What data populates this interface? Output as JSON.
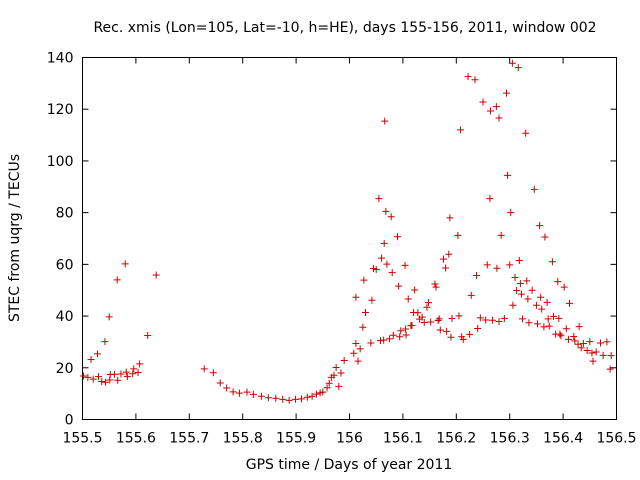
{
  "chart_data": {
    "type": "scatter",
    "title": "Rec. xmis (Lon=105, Lat=-10, h=HE), days 155-156, 2011, window 002",
    "xlabel": "GPS time / Days of year 2011",
    "ylabel": "STEC from uqrg / TECUs",
    "xlim": [
      155.5,
      156.5
    ],
    "ylim": [
      0,
      140
    ],
    "xticks": [
      155.5,
      155.6,
      155.7,
      155.8,
      155.9,
      156,
      156.1,
      156.2,
      156.3,
      156.4,
      156.5
    ],
    "xtick_labels": [
      "155.5",
      "155.6",
      "155.7",
      "155.8",
      "155.9",
      "156",
      "156.1",
      "156.2",
      "156.3",
      "156.4",
      "156.5"
    ],
    "yticks": [
      0,
      20,
      40,
      60,
      80,
      100,
      120,
      140
    ],
    "ytick_labels": [
      "0",
      "20",
      "40",
      "60",
      "80",
      "100",
      "120",
      "140"
    ],
    "grid": false,
    "marker": "+",
    "color": "#cc0000",
    "points": [
      [
        155.502,
        16.8
      ],
      [
        155.51,
        16.3
      ],
      [
        155.516,
        23.2
      ],
      [
        155.52,
        15.6
      ],
      [
        155.528,
        25.4
      ],
      [
        155.53,
        16.6
      ],
      [
        155.536,
        14.7
      ],
      [
        155.542,
        30.1
      ],
      [
        155.543,
        14.4
      ],
      [
        155.55,
        39.7
      ],
      [
        155.551,
        15.3
      ],
      [
        155.552,
        17.4
      ],
      [
        155.56,
        17.5
      ],
      [
        155.565,
        54.0
      ],
      [
        155.566,
        15.2
      ],
      [
        155.572,
        17.6
      ],
      [
        155.58,
        60.2
      ],
      [
        155.582,
        18.3
      ],
      [
        155.584,
        16.6
      ],
      [
        155.594,
        17.7
      ],
      [
        155.596,
        19.6
      ],
      [
        155.604,
        18.2
      ],
      [
        155.607,
        21.5
      ],
      [
        155.622,
        32.5
      ],
      [
        155.638,
        55.9
      ],
      [
        155.728,
        19.6
      ],
      [
        155.745,
        18.1
      ],
      [
        155.758,
        14.1
      ],
      [
        155.77,
        12.2
      ],
      [
        155.782,
        10.7
      ],
      [
        155.794,
        10.2
      ],
      [
        155.808,
        10.6
      ],
      [
        155.82,
        9.7
      ],
      [
        155.835,
        9.0
      ],
      [
        155.848,
        8.4
      ],
      [
        155.862,
        8.2
      ],
      [
        155.875,
        7.8
      ],
      [
        155.887,
        7.4
      ],
      [
        155.899,
        7.8
      ],
      [
        155.91,
        8.0
      ],
      [
        155.921,
        8.6
      ],
      [
        155.93,
        9.0
      ],
      [
        155.938,
        9.8
      ],
      [
        155.945,
        10.3
      ],
      [
        155.95,
        10.6
      ],
      [
        155.958,
        12.3
      ],
      [
        155.962,
        14.0
      ],
      [
        155.966,
        16.3
      ],
      [
        155.971,
        17.1
      ],
      [
        155.975,
        20.1
      ],
      [
        155.98,
        12.8
      ],
      [
        155.984,
        18.0
      ],
      [
        155.99,
        22.8
      ],
      [
        156.008,
        25.6
      ],
      [
        156.012,
        29.4
      ],
      [
        156.012,
        47.3
      ],
      [
        156.016,
        22.6
      ],
      [
        156.02,
        27.3
      ],
      [
        156.025,
        35.7
      ],
      [
        156.027,
        53.9
      ],
      [
        156.03,
        41.4
      ],
      [
        156.04,
        29.6
      ],
      [
        156.042,
        46.1
      ],
      [
        156.045,
        58.4
      ],
      [
        156.05,
        58.0
      ],
      [
        156.055,
        85.4
      ],
      [
        156.058,
        30.5
      ],
      [
        156.06,
        62.4
      ],
      [
        156.064,
        30.7
      ],
      [
        156.065,
        68.1
      ],
      [
        156.066,
        115.4
      ],
      [
        156.068,
        80.5
      ],
      [
        156.07,
        60.1
      ],
      [
        156.075,
        31.2
      ],
      [
        156.078,
        78.4
      ],
      [
        156.08,
        56.8
      ],
      [
        156.082,
        32.6
      ],
      [
        156.09,
        70.7
      ],
      [
        156.092,
        51.6
      ],
      [
        156.094,
        32.0
      ],
      [
        156.096,
        34.3
      ],
      [
        156.104,
        59.6
      ],
      [
        156.105,
        35.0
      ],
      [
        156.106,
        32.7
      ],
      [
        156.11,
        46.6
      ],
      [
        156.115,
        36.3
      ],
      [
        156.117,
        36.4
      ],
      [
        156.12,
        41.4
      ],
      [
        156.122,
        50.1
      ],
      [
        156.128,
        41.3
      ],
      [
        156.131,
        38.8
      ],
      [
        156.136,
        39.6
      ],
      [
        156.14,
        37.5
      ],
      [
        156.145,
        43.4
      ],
      [
        156.148,
        45.2
      ],
      [
        156.152,
        37.7
      ],
      [
        156.16,
        52.4
      ],
      [
        156.162,
        51.2
      ],
      [
        156.166,
        38.3
      ],
      [
        156.168,
        38.9
      ],
      [
        156.17,
        34.6
      ],
      [
        156.176,
        62.0
      ],
      [
        156.18,
        58.6
      ],
      [
        156.182,
        34.1
      ],
      [
        156.186,
        63.9
      ],
      [
        156.19,
        31.8
      ],
      [
        156.188,
        78.0
      ],
      [
        156.192,
        39.1
      ],
      [
        156.203,
        71.2
      ],
      [
        156.205,
        40.1
      ],
      [
        156.208,
        112.0
      ],
      [
        156.21,
        32.0
      ],
      [
        156.213,
        31.0
      ],
      [
        156.222,
        132.6
      ],
      [
        156.225,
        32.9
      ],
      [
        156.228,
        48.0
      ],
      [
        156.235,
        131.4
      ],
      [
        156.238,
        55.7
      ],
      [
        156.24,
        35.2
      ],
      [
        156.245,
        39.3
      ],
      [
        156.25,
        122.8
      ],
      [
        156.255,
        38.5
      ],
      [
        156.258,
        59.8
      ],
      [
        156.263,
        85.4
      ],
      [
        156.264,
        119.3
      ],
      [
        156.268,
        38.4
      ],
      [
        156.275,
        121.0
      ],
      [
        156.276,
        58.5
      ],
      [
        156.28,
        116.6
      ],
      [
        156.28,
        37.9
      ],
      [
        156.284,
        71.2
      ],
      [
        156.29,
        39.1
      ],
      [
        156.294,
        126.2
      ],
      [
        156.296,
        94.4
      ],
      [
        156.3,
        59.8
      ],
      [
        156.302,
        80.0
      ],
      [
        156.305,
        137.8
      ],
      [
        156.306,
        44.2
      ],
      [
        156.31,
        54.9
      ],
      [
        156.313,
        49.9
      ],
      [
        156.316,
        136.1
      ],
      [
        156.318,
        61.5
      ],
      [
        156.32,
        52.6
      ],
      [
        156.322,
        48.5
      ],
      [
        156.324,
        38.9
      ],
      [
        156.33,
        110.7
      ],
      [
        156.332,
        53.6
      ],
      [
        156.334,
        46.6
      ],
      [
        156.336,
        37.4
      ],
      [
        156.342,
        50.0
      ],
      [
        156.346,
        89.0
      ],
      [
        156.35,
        44.2
      ],
      [
        156.352,
        37.0
      ],
      [
        156.356,
        75.0
      ],
      [
        156.358,
        47.3
      ],
      [
        156.36,
        42.7
      ],
      [
        156.364,
        35.8
      ],
      [
        156.366,
        70.6
      ],
      [
        156.37,
        45.3
      ],
      [
        156.372,
        38.9
      ],
      [
        156.374,
        36.1
      ],
      [
        156.38,
        61.0
      ],
      [
        156.382,
        39.9
      ],
      [
        156.386,
        33.0
      ],
      [
        156.39,
        53.3
      ],
      [
        156.392,
        39.1
      ],
      [
        156.394,
        33.0
      ],
      [
        156.396,
        32.4
      ],
      [
        156.402,
        51.2
      ],
      [
        156.406,
        35.1
      ],
      [
        156.41,
        31.0
      ],
      [
        156.412,
        44.9
      ],
      [
        156.42,
        32.1
      ],
      [
        156.422,
        30.4
      ],
      [
        156.428,
        29.1
      ],
      [
        156.43,
        35.9
      ],
      [
        156.434,
        27.7
      ],
      [
        156.438,
        29.4
      ],
      [
        156.445,
        26.7
      ],
      [
        156.45,
        30.1
      ],
      [
        156.454,
        25.7
      ],
      [
        156.456,
        22.6
      ],
      [
        156.462,
        26.1
      ],
      [
        156.47,
        29.6
      ],
      [
        156.475,
        24.8
      ],
      [
        156.482,
        30.0
      ],
      [
        156.488,
        19.5
      ],
      [
        156.49,
        24.7
      ]
    ]
  }
}
